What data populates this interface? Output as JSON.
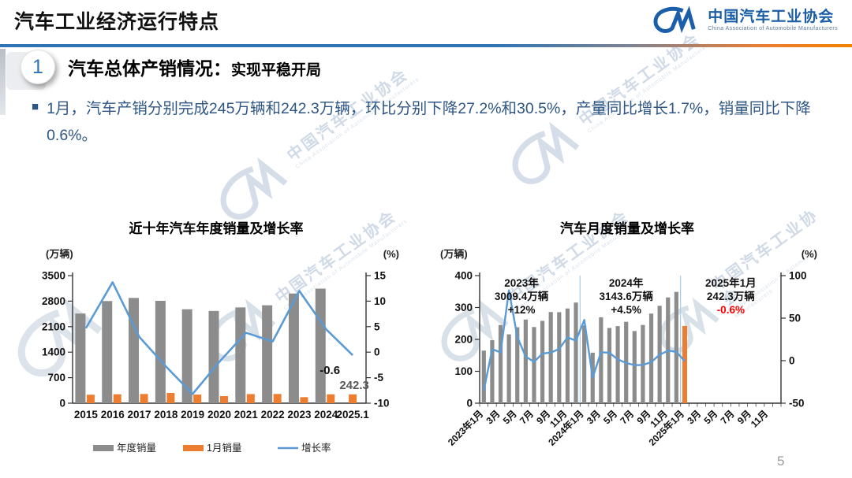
{
  "header": {
    "title": "汽车工业经济运行特点",
    "logo": {
      "icon": "caam-cm-logo",
      "name": "中国汽车工业协会",
      "subtitle": "China Association of Automobile Manufacturers"
    }
  },
  "section": {
    "number": "1",
    "heading": "汽车总体产销情况：",
    "subheading": "实现平稳开局"
  },
  "bullet": {
    "marker": "■",
    "text": "1月，汽车产销分别完成245万辆和242.3万辆，环比分别下降27.2%和30.5%，产量同比增长1.7%，销量同比下降0.6%。"
  },
  "watermark": {
    "text": "中国汽车工业协会",
    "latin": "China Association of Automobile Manufacturers"
  },
  "page_number": "5",
  "colors": {
    "bar_gray": "#8c8c8c",
    "bar_orange": "#ed7d31",
    "line_blue": "#5b9bd5",
    "axis_black": "#333333",
    "label_gray": "#595959",
    "negative_red": "#ff0000",
    "separator_blue": "#a8cce8"
  },
  "chart_data": [
    {
      "type": "bar+line",
      "title": "近十年汽车年度销量及增长率",
      "left_axis_label": "(万辆)",
      "right_axis_label": "(%)",
      "categories": [
        "2015",
        "2016",
        "2017",
        "2018",
        "2019",
        "2020",
        "2021",
        "2022",
        "2023",
        "2024",
        "2025.1"
      ],
      "series": [
        {
          "name": "年度销量",
          "type": "bar",
          "axis": "left",
          "color_key": "bar_gray",
          "values": [
            2459.8,
            2802.8,
            2887.9,
            2808.1,
            2576.9,
            2531.1,
            2627.5,
            2686.4,
            3009.4,
            3143.6,
            null
          ]
        },
        {
          "name": "1月销量",
          "type": "bar",
          "axis": "left",
          "color_key": "bar_orange",
          "values": [
            232,
            245,
            252,
            281,
            237,
            194,
            250,
            253,
            165,
            244,
            242.3
          ]
        },
        {
          "name": "增长率",
          "type": "line",
          "axis": "right",
          "color_key": "line_blue",
          "values": [
            4.7,
            13.7,
            3.0,
            -2.8,
            -8.2,
            -1.9,
            3.8,
            2.1,
            12.0,
            4.5,
            -0.6
          ]
        }
      ],
      "left_range": [
        0,
        3500
      ],
      "left_ticks": [
        0,
        700,
        1400,
        2100,
        2800,
        3500
      ],
      "right_range": [
        -10,
        15
      ],
      "right_ticks": [
        -10,
        -5,
        0,
        5,
        10,
        15
      ],
      "point_labels": {
        "growth_last": "-0.6",
        "january_last": "242.3"
      },
      "legend_position": "bottom"
    },
    {
      "type": "bar+line",
      "title": "汽车月度销量及增长率",
      "left_axis_label": "(万辆)",
      "right_axis_label": "(%)",
      "x_tick_labels": [
        "2023年1月",
        "3月",
        "5月",
        "7月",
        "9月",
        "11月",
        "2024年1月",
        "3月",
        "5月",
        "7月",
        "9月",
        "11月",
        "2025年1月",
        "3月",
        "5月",
        "7月",
        "9月",
        "11月"
      ],
      "x_tick_every": 2,
      "total_slots": 36,
      "series": [
        {
          "name": "月度销量",
          "type": "bar",
          "axis": "left",
          "color_key": "bar_gray",
          "last_color_key": "bar_orange",
          "values": [
            164.9,
            197.6,
            245.1,
            215.9,
            238.2,
            262.2,
            238.8,
            258.2,
            285.8,
            285.3,
            297.0,
            315.6,
            243.9,
            158.4,
            269.4,
            235.9,
            241.7,
            255.2,
            226.2,
            245.3,
            280.9,
            305.3,
            331.6,
            348.9,
            242.3
          ]
        },
        {
          "name": "增长率",
          "type": "line",
          "axis": "right",
          "color_key": "line_blue",
          "values": [
            -35.0,
            13.5,
            9.7,
            82.7,
            27.9,
            4.8,
            -1.4,
            8.4,
            9.5,
            13.8,
            27.4,
            23.5,
            47.9,
            -19.9,
            9.9,
            9.3,
            1.5,
            -2.7,
            -5.2,
            -5.0,
            -1.7,
            7.0,
            11.7,
            10.5,
            -0.6
          ]
        }
      ],
      "left_range": [
        0,
        400
      ],
      "left_ticks": [
        0,
        100,
        200,
        300,
        400
      ],
      "right_range": [
        -50,
        100
      ],
      "right_ticks": [
        -50,
        0,
        50,
        100
      ],
      "separator_slots": [
        12,
        24
      ],
      "annotations": [
        {
          "lines": [
            "2023年",
            "3009.4万辆",
            "+12%"
          ],
          "slot": 4.5,
          "highlight_last": false
        },
        {
          "lines": [
            "2024年",
            "3143.6万辆",
            "+4.5%"
          ],
          "slot": 17,
          "highlight_last": false
        },
        {
          "lines": [
            "2025年1月",
            "242.3万辆",
            "-0.6%"
          ],
          "slot": 29.5,
          "highlight_last": true
        }
      ]
    }
  ]
}
